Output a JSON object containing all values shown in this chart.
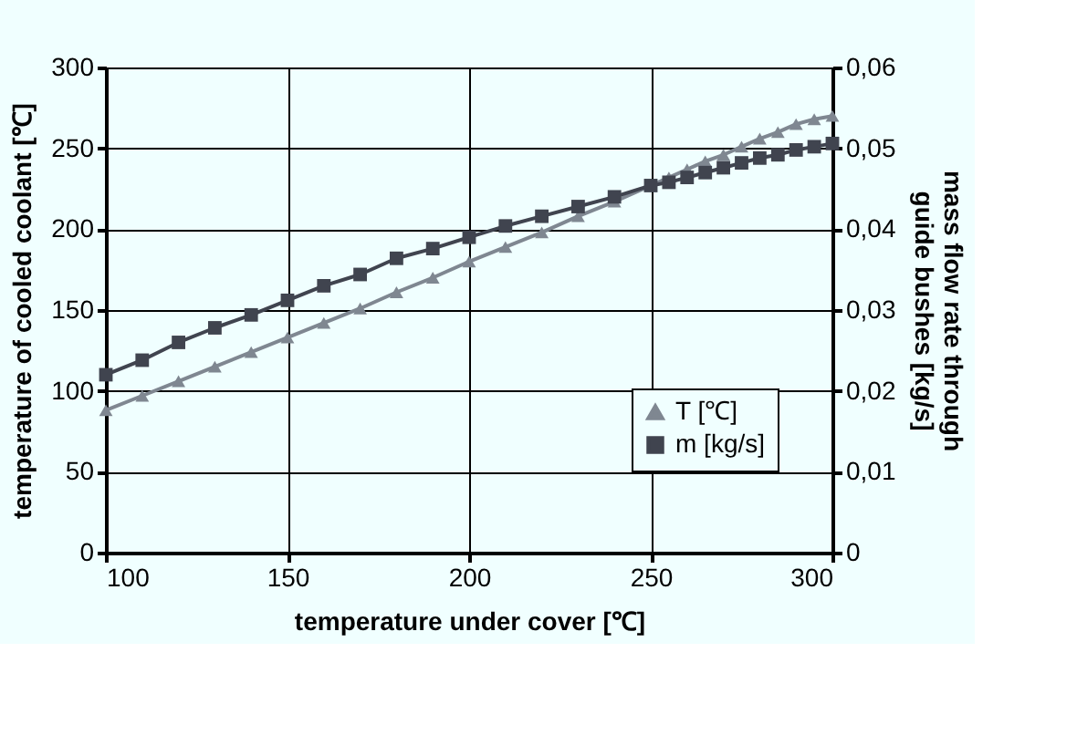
{
  "chart_data": {
    "type": "line",
    "xlabel": "temperature under cover [℃]",
    "ylabel": "temperature of cooled coolant  [℃]",
    "y2label": "mass flow rate through guide bushes [kg/s]",
    "x": [
      100,
      110,
      120,
      130,
      140,
      150,
      160,
      170,
      180,
      190,
      200,
      210,
      220,
      230,
      240,
      250,
      255,
      260,
      265,
      270,
      275,
      280,
      285,
      290,
      295,
      300
    ],
    "series": [
      {
        "name": "T [℃]",
        "color": "#7f8791",
        "marker": "triangle",
        "values": [
          88,
          97,
          106,
          115,
          124,
          133,
          142,
          151,
          161,
          170,
          180,
          189,
          198,
          208,
          217,
          227,
          232,
          237,
          242,
          246,
          251,
          256,
          260,
          265,
          268,
          270
        ]
      },
      {
        "name": "m [kg/s]",
        "color": "#40444f",
        "marker": "square",
        "axis": "y2",
        "values": [
          0.022,
          0.0238,
          0.026,
          0.0278,
          0.0294,
          0.0312,
          0.033,
          0.0344,
          0.0364,
          0.0376,
          0.039,
          0.0404,
          0.0416,
          0.0428,
          0.044,
          0.0454,
          0.0458,
          0.0464,
          0.047,
          0.0476,
          0.0482,
          0.0488,
          0.0492,
          0.0498,
          0.0502,
          0.0506
        ]
      }
    ],
    "xlim": [
      100,
      300
    ],
    "xticks": [
      100,
      150,
      200,
      250,
      300
    ],
    "ylim": [
      0,
      300
    ],
    "yticks": [
      0,
      50,
      100,
      150,
      200,
      250,
      300
    ],
    "y2lim": [
      0,
      0.06
    ],
    "y2ticks": [
      0,
      {
        "value": 0.01,
        "label": "0,01"
      },
      {
        "value": 0.02,
        "label": "0,02"
      },
      {
        "value": 0.03,
        "label": "0,03"
      },
      {
        "value": 0.04,
        "label": "0,04"
      },
      {
        "value": 0.05,
        "label": "0,05"
      },
      {
        "value": 0.06,
        "label": "0,06"
      }
    ],
    "grid": true,
    "legend": "bottom right",
    "line_style": "solid"
  }
}
